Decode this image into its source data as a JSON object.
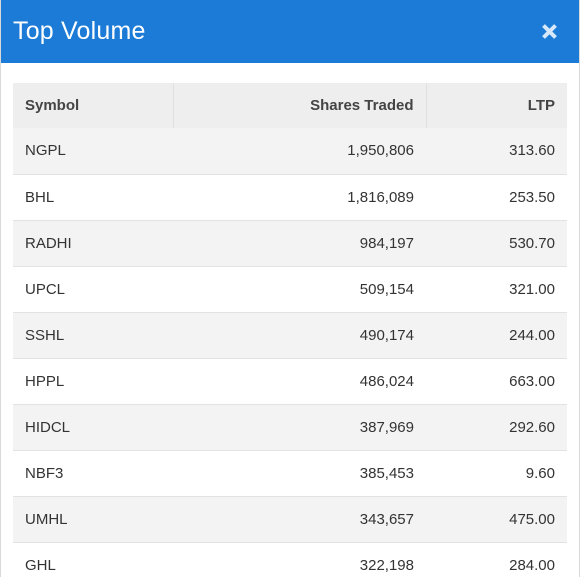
{
  "header": {
    "title": "Top Volume",
    "close_icon": "close-icon"
  },
  "table": {
    "columns": [
      "Symbol",
      "Shares Traded",
      "LTP"
    ],
    "rows": [
      {
        "symbol": "NGPL",
        "shares": "1,950,806",
        "ltp": "313.60"
      },
      {
        "symbol": "BHL",
        "shares": "1,816,089",
        "ltp": "253.50"
      },
      {
        "symbol": "RADHI",
        "shares": "984,197",
        "ltp": "530.70"
      },
      {
        "symbol": "UPCL",
        "shares": "509,154",
        "ltp": "321.00"
      },
      {
        "symbol": "SSHL",
        "shares": "490,174",
        "ltp": "244.00"
      },
      {
        "symbol": "HPPL",
        "shares": "486,024",
        "ltp": "663.00"
      },
      {
        "symbol": "HIDCL",
        "shares": "387,969",
        "ltp": "292.60"
      },
      {
        "symbol": "NBF3",
        "shares": "385,453",
        "ltp": "9.60"
      },
      {
        "symbol": "UMHL",
        "shares": "343,657",
        "ltp": "475.00"
      },
      {
        "symbol": "GHL",
        "shares": "322,198",
        "ltp": "284.00"
      }
    ]
  },
  "colors": {
    "header_bg": "#1b7bd6",
    "stripe": "#f3f3f3"
  }
}
